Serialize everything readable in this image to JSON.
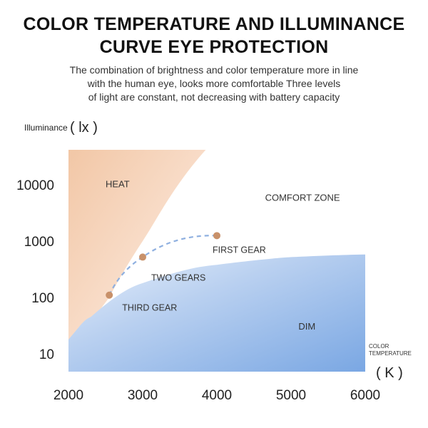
{
  "header": {
    "title_line1": "COLOR TEMPERATURE AND ILLUMINANCE",
    "title_line2": "CURVE EYE PROTECTION",
    "subtitle_lines": [
      "The combination of brightness and color temperature more in line",
      "with the human eye, looks more comfortable Three levels",
      "of light are constant, not decreasing with battery capacity"
    ]
  },
  "colors": {
    "heat": "#f2c7a6",
    "dim": "#7aa7e3",
    "gear_point": "#c8916a",
    "curve": "#8fb0e0"
  },
  "chart_data": {
    "type": "area",
    "xlabel": "COLOR TEMPERATURE",
    "xunit": "( K )",
    "ylabel": "Illuminance",
    "yunit": "( lx )",
    "x_ticks": [
      "2000",
      "3000",
      "4000",
      "5000",
      "6000"
    ],
    "y_ticks": [
      "10",
      "100",
      "1000",
      "10000"
    ],
    "xlim": [
      2000,
      6000
    ],
    "ylim": [
      10,
      50000
    ],
    "yscale": "log",
    "grid": false,
    "regions": [
      {
        "name": "HEAT",
        "boundary": [
          [
            2000,
            45000
          ],
          [
            3850,
            45000
          ],
          [
            3000,
            1000
          ],
          [
            2550,
            100
          ],
          [
            2000,
            12
          ]
        ]
      },
      {
        "name": "COMFORT ZONE"
      },
      {
        "name": "DIM",
        "boundary": [
          [
            2000,
            18
          ],
          [
            2300,
            45
          ],
          [
            3000,
            180
          ],
          [
            4000,
            380
          ],
          [
            5000,
            520
          ],
          [
            6000,
            580
          ]
        ]
      }
    ],
    "points": [
      {
        "label": "FIRST GEAR",
        "x": 4000,
        "y": 1250
      },
      {
        "label": "TWO GEARS",
        "x": 3000,
        "y": 520
      },
      {
        "label": "THIRD GEAR",
        "x": 2550,
        "y": 110
      }
    ]
  }
}
